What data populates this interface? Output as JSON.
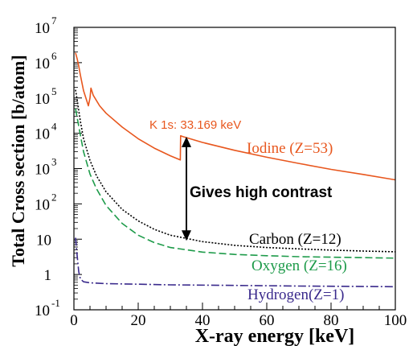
{
  "chart_data": {
    "type": "line",
    "xlabel": "X-ray energy [keV]",
    "ylabel": "Total Cross section [b/atom]",
    "xlim": [
      0,
      100
    ],
    "ylim": [
      0.1,
      10000000
    ],
    "yscale": "log",
    "x_ticks": [
      0,
      20,
      40,
      60,
      80,
      100
    ],
    "y_ticks": [
      {
        "value": 0.1,
        "base": "10",
        "exp": "-1"
      },
      {
        "value": 1,
        "base": "1",
        "exp": ""
      },
      {
        "value": 10,
        "base": "10",
        "exp": ""
      },
      {
        "value": 100,
        "base": "10",
        "exp": "2"
      },
      {
        "value": 1000,
        "base": "10",
        "exp": "3"
      },
      {
        "value": 10000,
        "base": "10",
        "exp": "4"
      },
      {
        "value": 100000,
        "base": "10",
        "exp": "5"
      },
      {
        "value": 1000000,
        "base": "10",
        "exp": "6"
      },
      {
        "value": 10000000,
        "base": "10",
        "exp": "7"
      }
    ],
    "series": [
      {
        "name": "Iodine (Z=53)",
        "color": "#e8571e",
        "dash": "solid",
        "points": [
          [
            0.5,
            1900000
          ],
          [
            1,
            1300000
          ],
          [
            1.5,
            800000
          ],
          [
            2,
            450000
          ],
          [
            3,
            160000
          ],
          [
            4.5,
            60000
          ],
          [
            5,
            100000
          ],
          [
            5.3,
            190000
          ],
          [
            6,
            120000
          ],
          [
            8,
            60000
          ],
          [
            10,
            37000
          ],
          [
            15,
            15000
          ],
          [
            20,
            7000
          ],
          [
            25,
            3800
          ],
          [
            30,
            2300
          ],
          [
            33.1,
            1750
          ],
          [
            33.2,
            8500
          ],
          [
            34,
            8000
          ],
          [
            40,
            5500
          ],
          [
            50,
            3300
          ],
          [
            60,
            2100
          ],
          [
            70,
            1400
          ],
          [
            80,
            950
          ],
          [
            90,
            680
          ],
          [
            100,
            480
          ]
        ]
      },
      {
        "name": "Carbon (Z=12)",
        "color": "#000000",
        "dash": "2,2",
        "points": [
          [
            0.5,
            170000
          ],
          [
            1,
            90000
          ],
          [
            2,
            22000
          ],
          [
            3,
            7000
          ],
          [
            5,
            1700
          ],
          [
            7,
            630
          ],
          [
            10,
            220
          ],
          [
            15,
            70
          ],
          [
            20,
            33
          ],
          [
            25,
            19
          ],
          [
            30,
            13
          ],
          [
            40,
            8.5
          ],
          [
            50,
            6.7
          ],
          [
            60,
            5.8
          ],
          [
            70,
            5.3
          ],
          [
            80,
            4.9
          ],
          [
            90,
            4.6
          ],
          [
            100,
            4.4
          ]
        ]
      },
      {
        "name": "Oxygen (Z=16)",
        "color": "#1e9b4a",
        "dash": "9,4",
        "points": [
          [
            0.5,
            50000
          ],
          [
            1,
            28000
          ],
          [
            2,
            9000
          ],
          [
            3,
            3000
          ],
          [
            5,
            700
          ],
          [
            7,
            270
          ],
          [
            10,
            90
          ],
          [
            15,
            28
          ],
          [
            20,
            13
          ],
          [
            25,
            8
          ],
          [
            30,
            5.8
          ],
          [
            40,
            4.3
          ],
          [
            50,
            3.7
          ],
          [
            60,
            3.4
          ],
          [
            70,
            3.2
          ],
          [
            80,
            3.1
          ],
          [
            90,
            3.0
          ],
          [
            100,
            2.9
          ]
        ]
      },
      {
        "name": "Hydrogen(Z=1)",
        "color": "#3a2a8c",
        "dash": "10,3,2,3",
        "points": [
          [
            0.5,
            11
          ],
          [
            1,
            3.5
          ],
          [
            1.5,
            1.2
          ],
          [
            2,
            0.75
          ],
          [
            3,
            0.62
          ],
          [
            5,
            0.58
          ],
          [
            10,
            0.55
          ],
          [
            20,
            0.53
          ],
          [
            30,
            0.51
          ],
          [
            50,
            0.49
          ],
          [
            70,
            0.47
          ],
          [
            100,
            0.45
          ]
        ]
      }
    ],
    "annotations": {
      "k_edge": "K 1s: 33.169 keV",
      "contrast": "Gives high contrast"
    },
    "contrast_arrow": {
      "x": 35,
      "y_top": 8000,
      "y_bottom": 9
    }
  }
}
